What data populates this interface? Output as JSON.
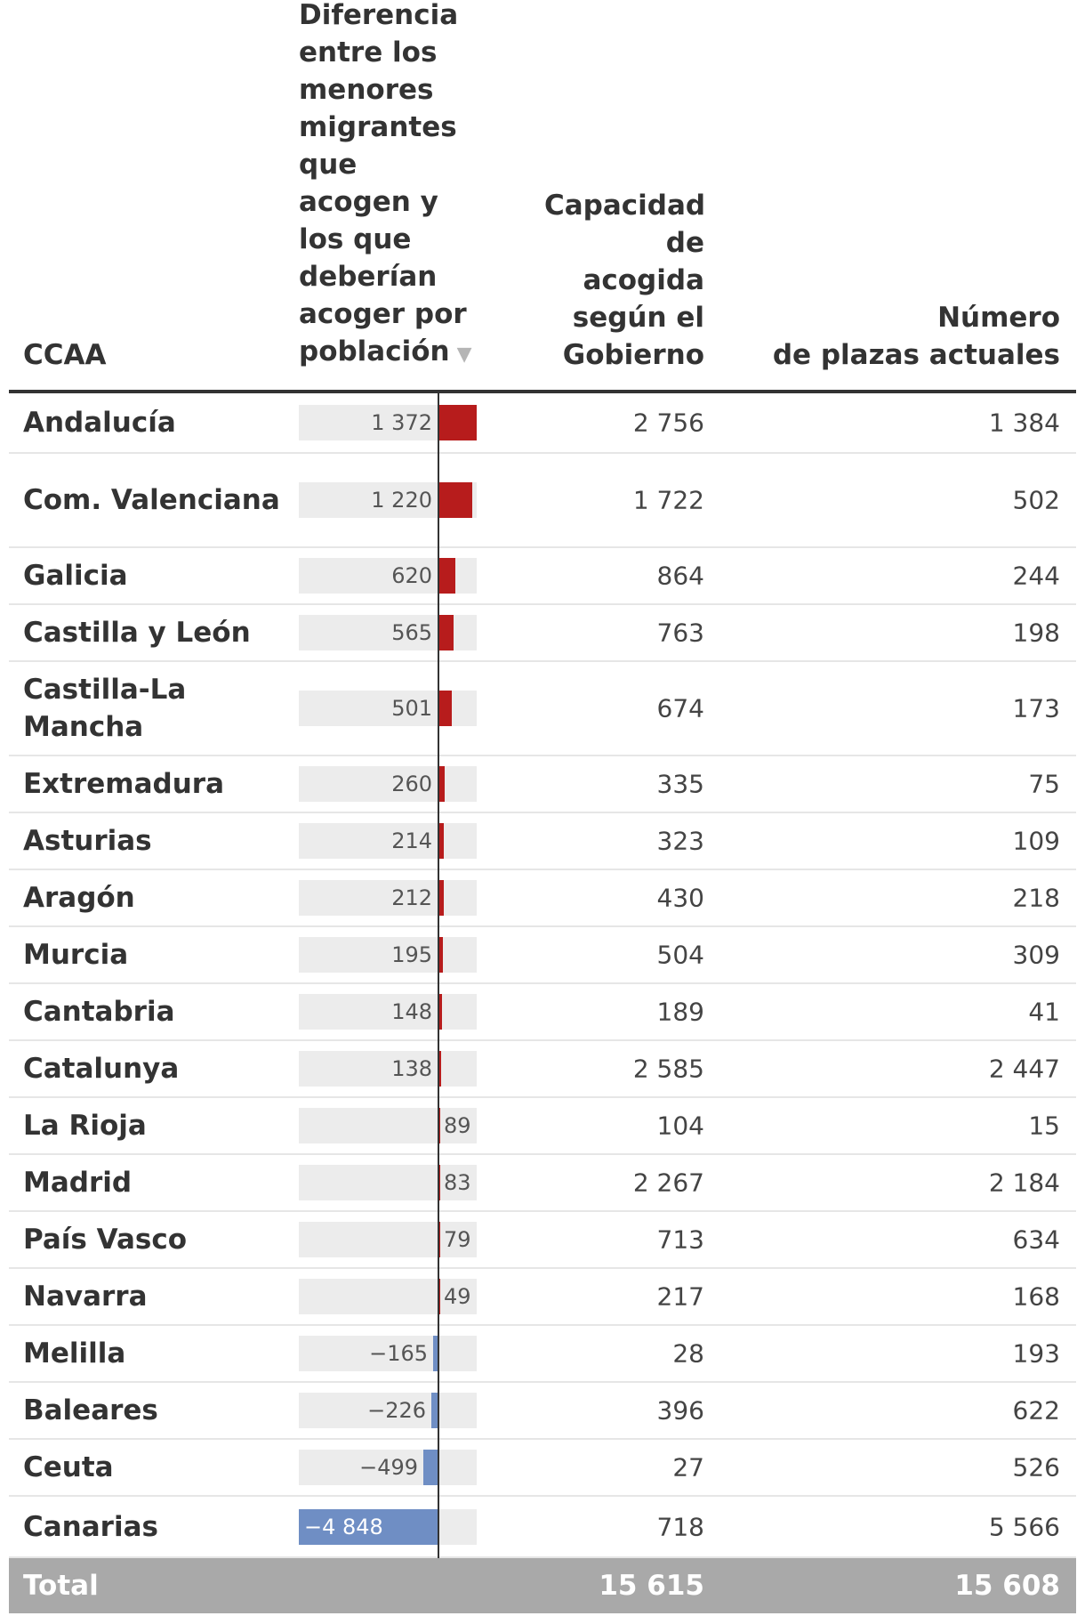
{
  "header": {
    "ccaa": "CCAA",
    "difference": "Diferencia entre los menores migrantes que acogen y los que deberían acoger por población",
    "capacity": "Capacidad de acogida según el Gobierno",
    "places_line1": "Número",
    "places_line2": "de plazas actuales",
    "sort_icon": "sort-descending-icon"
  },
  "colors": {
    "positive": "#b71c1c",
    "negative": "#6f8ec4",
    "track": "#ececec",
    "total_bg": "#a9a9a9"
  },
  "chart_data": {
    "type": "bar",
    "orientation": "horizontal",
    "xlim": [
      -4848,
      1372
    ],
    "series_name": "Diferencia entre los menores migrantes que acogen y los que deberían acoger por población",
    "categories": [
      "Andalucía",
      "Com. Valenciana",
      "Galicia",
      "Castilla y León",
      "Castilla-La Mancha",
      "Extremadura",
      "Asturias",
      "Aragón",
      "Murcia",
      "Cantabria",
      "Catalunya",
      "La Rioja",
      "Madrid",
      "País Vasco",
      "Navarra",
      "Melilla",
      "Baleares",
      "Ceuta",
      "Canarias"
    ],
    "values": [
      1372,
      1220,
      620,
      565,
      501,
      260,
      214,
      212,
      195,
      148,
      138,
      89,
      83,
      79,
      49,
      -165,
      -226,
      -499,
      -4848
    ]
  },
  "rows": [
    {
      "ccaa": "Andalucía",
      "diff": 1372,
      "diff_label": "1 372",
      "capacity": "2 756",
      "places": "1 384"
    },
    {
      "ccaa": "Com. Valenciana",
      "diff": 1220,
      "diff_label": "1 220",
      "capacity": "1 722",
      "places": "502"
    },
    {
      "ccaa": "Galicia",
      "diff": 620,
      "diff_label": "620",
      "capacity": "864",
      "places": "244"
    },
    {
      "ccaa": "Castilla y León",
      "diff": 565,
      "diff_label": "565",
      "capacity": "763",
      "places": "198"
    },
    {
      "ccaa": "Castilla-La Mancha",
      "diff": 501,
      "diff_label": "501",
      "capacity": "674",
      "places": "173"
    },
    {
      "ccaa": "Extremadura",
      "diff": 260,
      "diff_label": "260",
      "capacity": "335",
      "places": "75"
    },
    {
      "ccaa": "Asturias",
      "diff": 214,
      "diff_label": "214",
      "capacity": "323",
      "places": "109"
    },
    {
      "ccaa": "Aragón",
      "diff": 212,
      "diff_label": "212",
      "capacity": "430",
      "places": "218"
    },
    {
      "ccaa": "Murcia",
      "diff": 195,
      "diff_label": "195",
      "capacity": "504",
      "places": "309"
    },
    {
      "ccaa": "Cantabria",
      "diff": 148,
      "diff_label": "148",
      "capacity": "189",
      "places": "41"
    },
    {
      "ccaa": "Catalunya",
      "diff": 138,
      "diff_label": "138",
      "capacity": "2 585",
      "places": "2 447"
    },
    {
      "ccaa": "La Rioja",
      "diff": 89,
      "diff_label": "89",
      "capacity": "104",
      "places": "15"
    },
    {
      "ccaa": "Madrid",
      "diff": 83,
      "diff_label": "83",
      "capacity": "2 267",
      "places": "2 184"
    },
    {
      "ccaa": "País Vasco",
      "diff": 79,
      "diff_label": "79",
      "capacity": "713",
      "places": "634"
    },
    {
      "ccaa": "Navarra",
      "diff": 49,
      "diff_label": "49",
      "capacity": "217",
      "places": "168"
    },
    {
      "ccaa": "Melilla",
      "diff": -165,
      "diff_label": "−165",
      "capacity": "28",
      "places": "193"
    },
    {
      "ccaa": "Baleares",
      "diff": -226,
      "diff_label": "−226",
      "capacity": "396",
      "places": "622"
    },
    {
      "ccaa": "Ceuta",
      "diff": -499,
      "diff_label": "−499",
      "capacity": "27",
      "places": "526"
    },
    {
      "ccaa": "Canarias",
      "diff": -4848,
      "diff_label": "−4 848",
      "capacity": "718",
      "places": "5 566"
    }
  ],
  "total": {
    "label": "Total",
    "capacity": "15 615",
    "places": "15 608"
  }
}
